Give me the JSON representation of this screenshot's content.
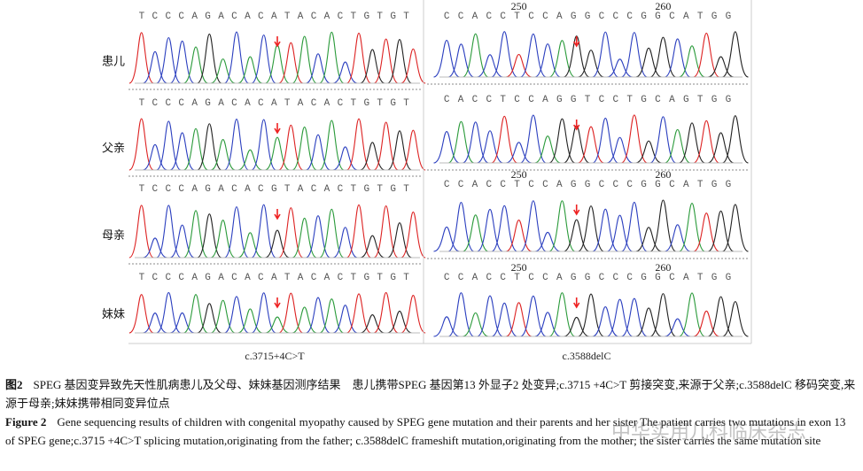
{
  "left_panels": [
    {
      "label": "患儿",
      "sequence": "TCCCAGACACATACACTGTGT"
    },
    {
      "label": "父亲",
      "sequence": "TCCCAGACACATACACTGTGT"
    },
    {
      "label": "母亲",
      "sequence": "TCCCAGACACGTACACTGTGT"
    },
    {
      "label": "妹妹",
      "sequence": "TCCCAGACACATACACTGTGT"
    }
  ],
  "right_panels": [
    {
      "sequence": "CCACCTCCAGGCCCGGCATGG",
      "positions": [
        250,
        260
      ]
    },
    {
      "sequence": "CACCTCCAGGTCCTGCAGTGG"
    },
    {
      "sequence": "CCACCTCCAGGCCCGGCATGG",
      "positions": [
        250,
        260
      ]
    },
    {
      "sequence": "CCACCTCCAGGCCCGGCATGG",
      "positions": [
        250,
        260
      ]
    }
  ],
  "left_caption": "c.3715+4C>T",
  "right_caption": "c.3588delC",
  "caption_zh": {
    "label": "图2",
    "text": "SPEG 基因变异致先天性肌病患儿及父母、妹妹基因测序结果　患儿携带SPEG 基因第13 外显子2 处变异;c.3715 +4C>T 剪接突变,来源于父亲;c.3588delC 移码突变,来源于母亲;妹妹携带相同变异位点"
  },
  "caption_en": {
    "label": "Figure 2",
    "text": "Gene sequencing results of children with congenital myopathy caused by SPEG gene mutation and their parents and her sister  The patient carries two mutations in exon 13 of SPEG gene;c.3715 +4C>T splicing mutation,originating from the father; c.3588delC frameshift mutation,originating from the mother; the sister carries the same mutation site"
  },
  "watermark": "中华实用儿科临床杂志"
}
